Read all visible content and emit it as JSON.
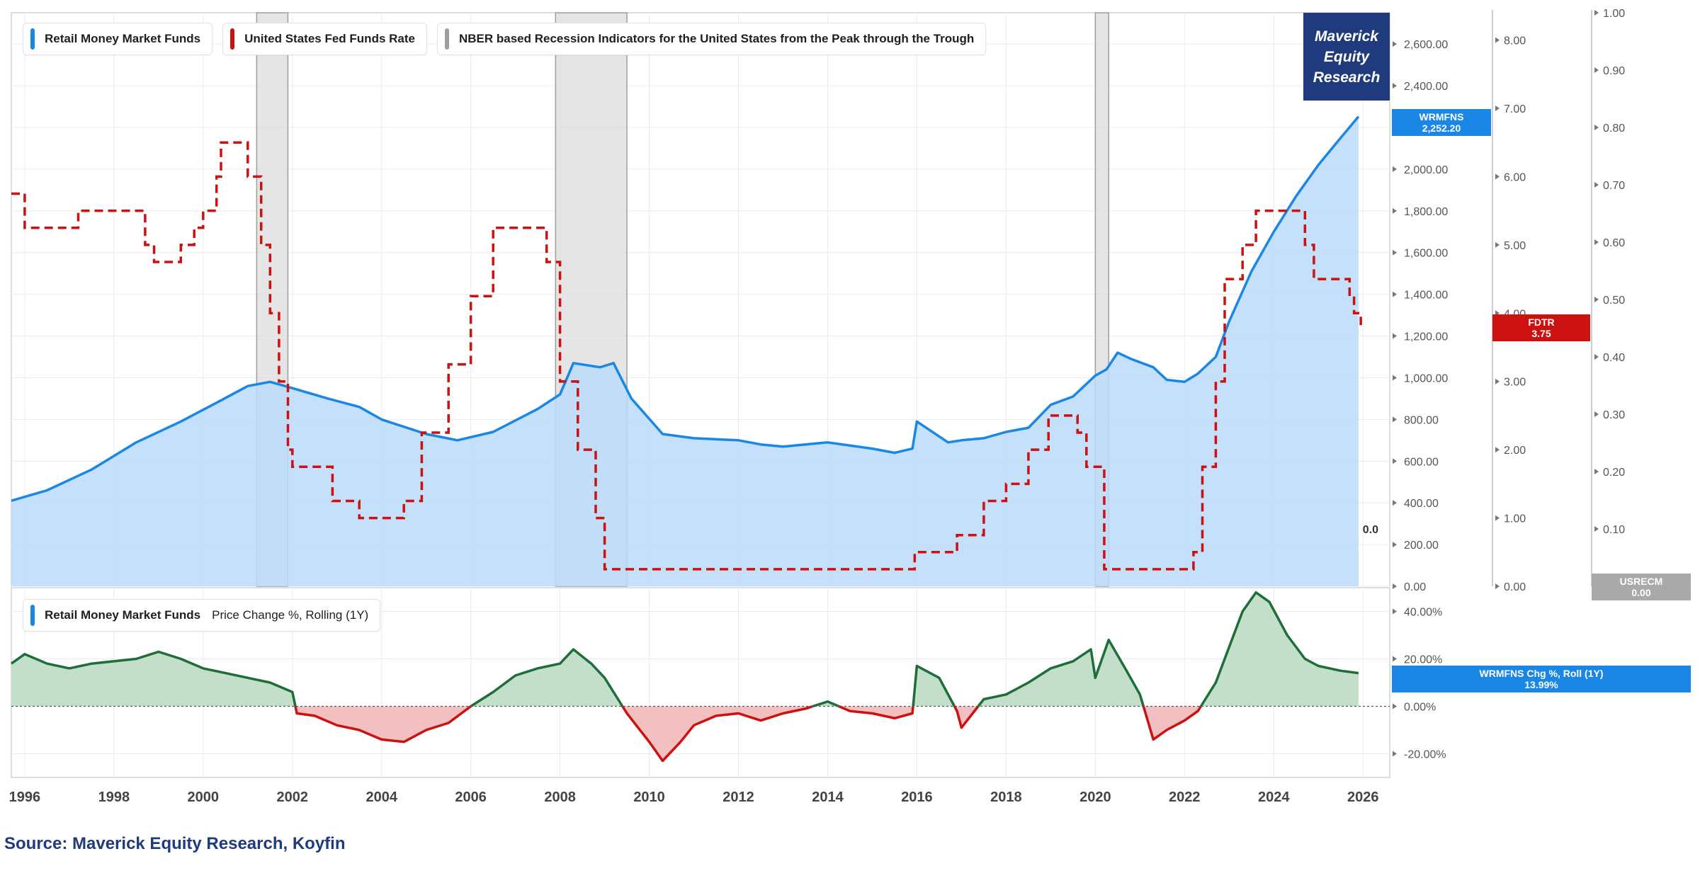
{
  "branding": {
    "line1": "Maverick",
    "line2": "Equity",
    "line3": "Research"
  },
  "source": "Source: Maverick Equity Research, Koyfin",
  "colors": {
    "mmf": "#1a87e6",
    "mmf_fill": "#bcdcfa",
    "fed": "#cc1111",
    "recession": "#9e9e9e",
    "recession_fill": "#dcdcdc",
    "pos": "#1e6e3a",
    "pos_fill": "#c3dfca",
    "neg": "#cc1111",
    "neg_fill": "#f2c0c0",
    "brand": "#1f3b7d",
    "usrec_tag": "#a9a9a9"
  },
  "legend_top": [
    {
      "label": "Retail Money Market Funds",
      "color": "#1a87e6"
    },
    {
      "label": "United States Fed Funds Rate",
      "color": "#cc1111"
    },
    {
      "label": "NBER based Recession Indicators for the United States from the Peak through the Trough",
      "color": "#9e9e9e"
    }
  ],
  "legend_bottom": {
    "label": "Retail Money Market Funds",
    "extra": "Price Change %, Rolling (1Y)",
    "color": "#1a87e6"
  },
  "tags": {
    "mmf": {
      "name": "WRMFNS",
      "value": "2,252.20"
    },
    "fed": {
      "name": "FDTR",
      "value": "3.75"
    },
    "usrec": {
      "name": "USRECM",
      "value": "0.00"
    },
    "chg": {
      "name": "WRMFNS Chg %, Roll (1Y)",
      "value": "13.99%"
    },
    "usrec_line": "0.0"
  },
  "chart_data": [
    {
      "type": "area",
      "title": "",
      "x_range": [
        1995.7,
        2026.6
      ],
      "x_ticks": [
        "1996",
        "1998",
        "2000",
        "2002",
        "2004",
        "2006",
        "2008",
        "2010",
        "2012",
        "2014",
        "2016",
        "2018",
        "2020",
        "2022",
        "2024",
        "2026"
      ],
      "axes": {
        "mmf": {
          "range": [
            0,
            2750
          ],
          "ticks": [
            "0.00",
            "200.00",
            "400.00",
            "600.00",
            "800.00",
            "1,000.00",
            "1,200.00",
            "1,400.00",
            "1,600.00",
            "1,800.00",
            "2,000.00",
            "2,200.00",
            "2,400.00",
            "2,600.00"
          ]
        },
        "fed": {
          "range": [
            0,
            8.4
          ],
          "ticks": [
            "0.00",
            "1.00",
            "2.00",
            "3.00",
            "4.00",
            "5.00",
            "6.00",
            "7.00",
            "8.00"
          ]
        },
        "usrec": {
          "range": [
            0,
            1.0
          ],
          "ticks": [
            "0.00",
            "0.10",
            "0.20",
            "0.30",
            "0.40",
            "0.50",
            "0.60",
            "0.70",
            "0.80",
            "0.90",
            "1.00"
          ]
        }
      },
      "recessions": [
        [
          2001.2,
          2001.9
        ],
        [
          2007.9,
          2009.5
        ],
        [
          2020.0,
          2020.3
        ]
      ],
      "series": [
        {
          "name": "Retail Money Market Funds",
          "axis": "mmf",
          "points": [
            [
              1995.7,
              410
            ],
            [
              1996.5,
              460
            ],
            [
              1997.5,
              560
            ],
            [
              1998.5,
              690
            ],
            [
              1999.5,
              790
            ],
            [
              2000.3,
              880
            ],
            [
              2001.0,
              960
            ],
            [
              2001.5,
              980
            ],
            [
              2002.0,
              950
            ],
            [
              2002.8,
              900
            ],
            [
              2003.5,
              860
            ],
            [
              2004.0,
              800
            ],
            [
              2005.0,
              730
            ],
            [
              2005.7,
              700
            ],
            [
              2006.5,
              740
            ],
            [
              2007.5,
              850
            ],
            [
              2008.0,
              920
            ],
            [
              2008.3,
              1070
            ],
            [
              2008.9,
              1050
            ],
            [
              2009.2,
              1070
            ],
            [
              2009.6,
              900
            ],
            [
              2010.3,
              730
            ],
            [
              2011.0,
              710
            ],
            [
              2012.0,
              700
            ],
            [
              2012.5,
              680
            ],
            [
              2013.0,
              670
            ],
            [
              2013.5,
              680
            ],
            [
              2014.0,
              690
            ],
            [
              2015.0,
              660
            ],
            [
              2015.5,
              640
            ],
            [
              2015.9,
              660
            ],
            [
              2016.0,
              790
            ],
            [
              2016.7,
              690
            ],
            [
              2017.0,
              700
            ],
            [
              2017.5,
              710
            ],
            [
              2018.0,
              740
            ],
            [
              2018.5,
              760
            ],
            [
              2019.0,
              870
            ],
            [
              2019.5,
              910
            ],
            [
              2020.0,
              1010
            ],
            [
              2020.25,
              1040
            ],
            [
              2020.5,
              1120
            ],
            [
              2020.8,
              1090
            ],
            [
              2021.3,
              1050
            ],
            [
              2021.6,
              990
            ],
            [
              2022.0,
              980
            ],
            [
              2022.3,
              1020
            ],
            [
              2022.7,
              1100
            ],
            [
              2023.0,
              1270
            ],
            [
              2023.5,
              1510
            ],
            [
              2024.0,
              1700
            ],
            [
              2024.5,
              1870
            ],
            [
              2025.0,
              2020
            ],
            [
              2025.5,
              2150
            ],
            [
              2025.9,
              2252.2
            ]
          ]
        },
        {
          "name": "United States Fed Funds Rate",
          "axis": "fed",
          "step": true,
          "points": [
            [
              1995.7,
              5.75
            ],
            [
              1996.0,
              5.25
            ],
            [
              1997.2,
              5.5
            ],
            [
              1998.7,
              5.0
            ],
            [
              1998.9,
              4.75
            ],
            [
              1999.5,
              5.0
            ],
            [
              1999.8,
              5.25
            ],
            [
              2000.0,
              5.5
            ],
            [
              2000.3,
              6.0
            ],
            [
              2000.4,
              6.5
            ],
            [
              2001.0,
              6.0
            ],
            [
              2001.3,
              5.0
            ],
            [
              2001.5,
              4.0
            ],
            [
              2001.7,
              3.0
            ],
            [
              2001.9,
              2.0
            ],
            [
              2002.0,
              1.75
            ],
            [
              2002.9,
              1.25
            ],
            [
              2003.5,
              1.0
            ],
            [
              2004.5,
              1.25
            ],
            [
              2004.9,
              2.25
            ],
            [
              2005.5,
              3.25
            ],
            [
              2006.0,
              4.25
            ],
            [
              2006.5,
              5.25
            ],
            [
              2007.7,
              4.75
            ],
            [
              2008.0,
              3.0
            ],
            [
              2008.4,
              2.0
            ],
            [
              2008.8,
              1.0
            ],
            [
              2009.0,
              0.25
            ],
            [
              2015.95,
              0.5
            ],
            [
              2016.9,
              0.75
            ],
            [
              2017.5,
              1.25
            ],
            [
              2018.0,
              1.5
            ],
            [
              2018.5,
              2.0
            ],
            [
              2018.95,
              2.5
            ],
            [
              2019.6,
              2.25
            ],
            [
              2019.8,
              1.75
            ],
            [
              2020.2,
              0.25
            ],
            [
              2022.2,
              0.5
            ],
            [
              2022.4,
              1.75
            ],
            [
              2022.7,
              3.0
            ],
            [
              2022.9,
              4.5
            ],
            [
              2023.3,
              5.0
            ],
            [
              2023.6,
              5.5
            ],
            [
              2024.7,
              5.0
            ],
            [
              2024.9,
              4.5
            ],
            [
              2025.7,
              4.25
            ],
            [
              2025.8,
              4.0
            ],
            [
              2025.95,
              3.75
            ]
          ]
        },
        {
          "name": "NBER based Recession Indicators for the United States from the Peak through the Trough",
          "axis": "usrec",
          "points": [
            [
              1995.7,
              0
            ],
            [
              2025.95,
              0
            ]
          ]
        }
      ]
    },
    {
      "type": "area",
      "title": "Price Change %, Rolling (1Y)",
      "ylim": [
        -30,
        50
      ],
      "y_ticks": [
        "-20.00%",
        "0.00%",
        "20.00%",
        "40.00%"
      ],
      "series": [
        {
          "name": "Retail Money Market Funds",
          "points": [
            [
              1995.7,
              18
            ],
            [
              1996.0,
              22
            ],
            [
              1996.5,
              18
            ],
            [
              1997.0,
              16
            ],
            [
              1997.5,
              18
            ],
            [
              1998.0,
              19
            ],
            [
              1998.5,
              20
            ],
            [
              1999.0,
              23
            ],
            [
              1999.5,
              20
            ],
            [
              2000.0,
              16
            ],
            [
              2000.5,
              14
            ],
            [
              2001.0,
              12
            ],
            [
              2001.5,
              10
            ],
            [
              2002.0,
              6
            ],
            [
              2002.1,
              -3
            ],
            [
              2002.5,
              -4
            ],
            [
              2003.0,
              -8
            ],
            [
              2003.5,
              -10
            ],
            [
              2004.0,
              -14
            ],
            [
              2004.5,
              -15
            ],
            [
              2005.0,
              -10
            ],
            [
              2005.5,
              -7
            ],
            [
              2006.0,
              0
            ],
            [
              2006.5,
              6
            ],
            [
              2007.0,
              13
            ],
            [
              2007.5,
              16
            ],
            [
              2008.0,
              18
            ],
            [
              2008.3,
              24
            ],
            [
              2008.7,
              18
            ],
            [
              2009.0,
              12
            ],
            [
              2009.5,
              -3
            ],
            [
              2010.0,
              -15
            ],
            [
              2010.3,
              -23
            ],
            [
              2010.7,
              -15
            ],
            [
              2011.0,
              -8
            ],
            [
              2011.5,
              -4
            ],
            [
              2012.0,
              -3
            ],
            [
              2012.5,
              -6
            ],
            [
              2013.0,
              -3
            ],
            [
              2013.5,
              -1
            ],
            [
              2014.0,
              2
            ],
            [
              2014.5,
              -2
            ],
            [
              2015.0,
              -3
            ],
            [
              2015.5,
              -5
            ],
            [
              2015.9,
              -3
            ],
            [
              2016.0,
              17
            ],
            [
              2016.5,
              12
            ],
            [
              2016.9,
              -2
            ],
            [
              2017.0,
              -9
            ],
            [
              2017.5,
              3
            ],
            [
              2018.0,
              5
            ],
            [
              2018.5,
              10
            ],
            [
              2019.0,
              16
            ],
            [
              2019.5,
              19
            ],
            [
              2019.9,
              24
            ],
            [
              2020.0,
              12
            ],
            [
              2020.3,
              28
            ],
            [
              2020.7,
              15
            ],
            [
              2021.0,
              5
            ],
            [
              2021.3,
              -14
            ],
            [
              2021.6,
              -10
            ],
            [
              2022.0,
              -6
            ],
            [
              2022.3,
              -2
            ],
            [
              2022.7,
              10
            ],
            [
              2023.0,
              25
            ],
            [
              2023.3,
              40
            ],
            [
              2023.6,
              48
            ],
            [
              2023.9,
              44
            ],
            [
              2024.3,
              30
            ],
            [
              2024.7,
              20
            ],
            [
              2025.0,
              17
            ],
            [
              2025.5,
              15
            ],
            [
              2025.9,
              13.99
            ]
          ]
        }
      ]
    }
  ]
}
